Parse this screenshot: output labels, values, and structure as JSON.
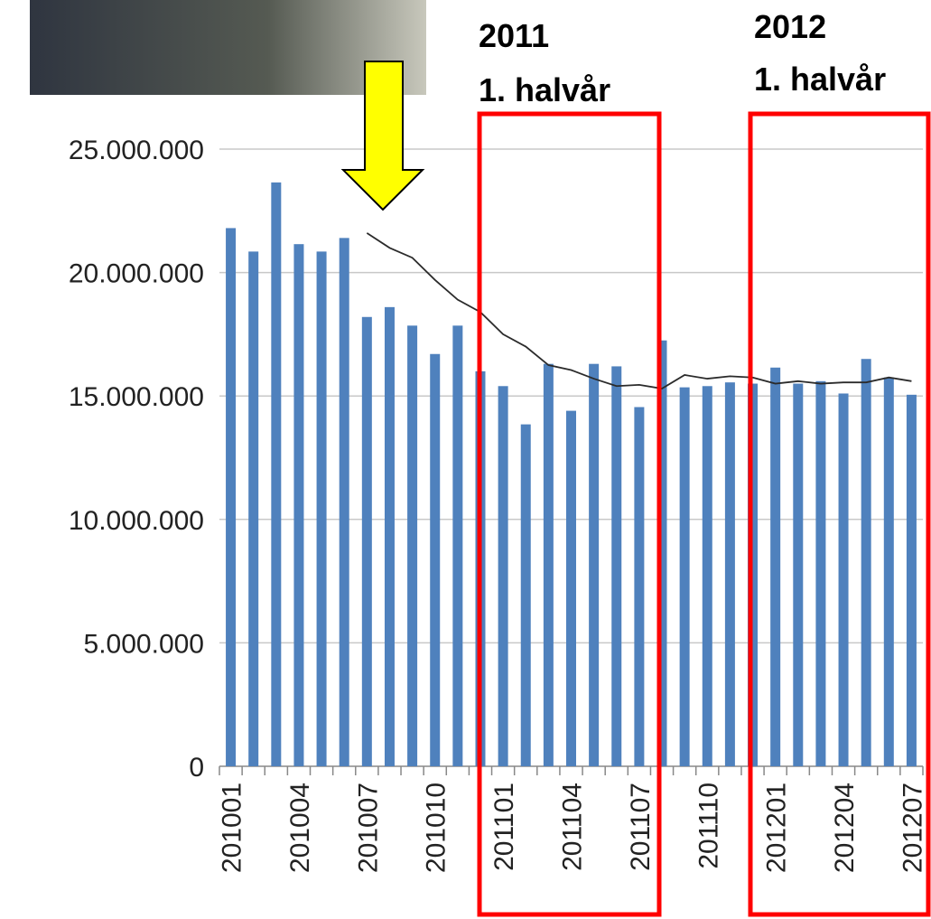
{
  "chart_data": {
    "type": "bar",
    "annotations": [
      "2011",
      "1. halvår",
      "2012",
      "1. halvår"
    ],
    "categories": [
      "201001",
      null,
      null,
      "201004",
      null,
      null,
      "201007",
      null,
      null,
      "201010",
      null,
      null,
      "201101",
      null,
      null,
      "201104",
      null,
      null,
      "201107",
      null,
      null,
      "201110",
      null,
      null,
      "201201",
      null,
      null,
      "201204",
      null,
      null,
      "201207"
    ],
    "series": [
      {
        "type": "bar",
        "color": "#4f81bd",
        "values": [
          21800000,
          20850000,
          23650000,
          21150000,
          20850000,
          21400000,
          18200000,
          18600000,
          17850000,
          16700000,
          17850000,
          16000000,
          15400000,
          13850000,
          16300000,
          14400000,
          16300000,
          16200000,
          14550000,
          17250000,
          15350000,
          15400000,
          15550000,
          15500000,
          16150000,
          15500000,
          15600000,
          15100000,
          16500000,
          15750000,
          15050000
        ]
      },
      {
        "type": "line",
        "color": "#2b2b2b",
        "values": [
          null,
          null,
          null,
          null,
          null,
          null,
          21600000,
          21000000,
          20600000,
          19700000,
          18900000,
          18400000,
          17500000,
          17000000,
          16250000,
          16050000,
          15700000,
          15400000,
          15450000,
          15300000,
          15850000,
          15700000,
          15800000,
          15750000,
          15500000,
          15600000,
          15500000,
          15550000,
          15550000,
          15750000,
          15600000
        ]
      }
    ],
    "ylim": [
      0,
      25000000
    ],
    "yticks": [
      0,
      {
        "value": 5000000,
        "label": "5.000.000"
      },
      {
        "value": 10000000,
        "label": "10.000.000"
      },
      {
        "value": 15000000,
        "label": "15.000.000"
      },
      {
        "value": 20000000,
        "label": "20.000.000"
      },
      {
        "value": 25000000,
        "label": "25.000.000"
      }
    ],
    "grid": true
  }
}
